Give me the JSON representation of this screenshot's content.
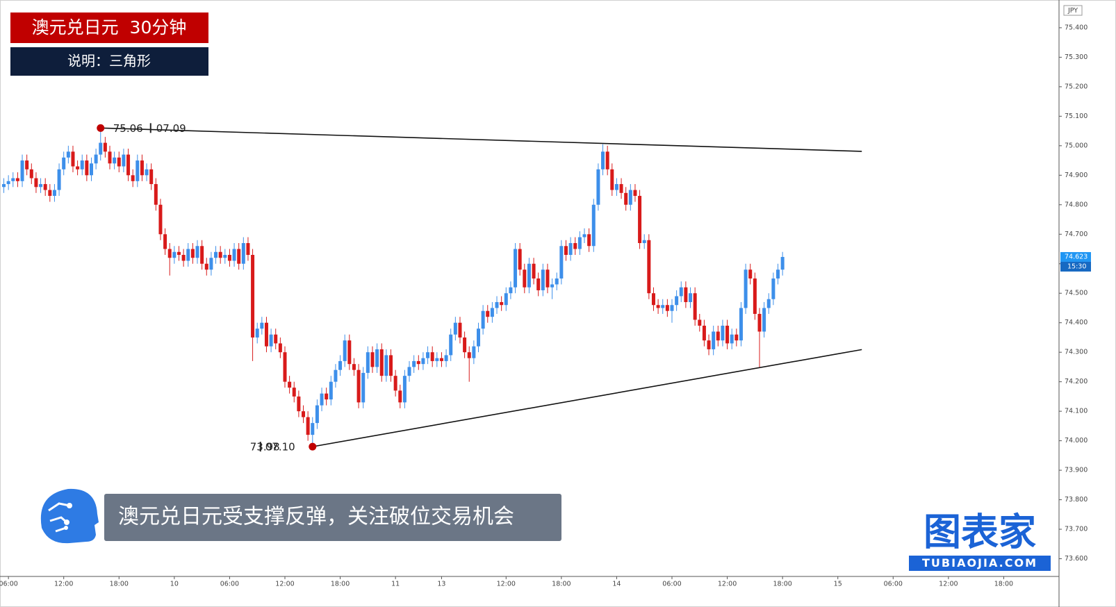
{
  "chart_data": {
    "type": "candlestick",
    "title": "澳元兑日元  30分钟",
    "subtitle": "说明：三角形",
    "caption": "澳元兑日元受支撑反弹，关注破位交易机会",
    "logo_text": "图表家",
    "logo_url": "TUBIAOJIA.COM",
    "currency": "JPY",
    "last_time": "15:30",
    "up_color": "#3d8fea",
    "down_color": "#d81a1a",
    "open": [
      74.86,
      74.87,
      74.88,
      74.89,
      74.88,
      74.95,
      74.92,
      74.89,
      74.86,
      74.87,
      74.85,
      74.83,
      74.85,
      74.92,
      74.96,
      74.98,
      74.93,
      74.92,
      74.95,
      74.9,
      74.94,
      74.97,
      75.01,
      74.98,
      74.94,
      74.96,
      74.93,
      74.97,
      74.9,
      74.88,
      74.95,
      74.9,
      74.92,
      74.87,
      74.8,
      74.7,
      74.65,
      74.62,
      74.64,
      74.63,
      74.61,
      74.65,
      74.62,
      74.66,
      74.6,
      74.58,
      74.62,
      74.64,
      74.62,
      74.63,
      74.61,
      74.65,
      74.6,
      74.67,
      74.63,
      74.35,
      74.38,
      74.4,
      74.32,
      74.36,
      74.33,
      74.3,
      74.2,
      74.18,
      74.15,
      74.1,
      74.08,
      74.02,
      74.06,
      74.12,
      74.16,
      74.14,
      74.2,
      74.24,
      74.27,
      74.34,
      74.26,
      74.24,
      74.13,
      74.23,
      74.3,
      74.25,
      74.31,
      74.22,
      74.29,
      74.22,
      74.17,
      74.13,
      74.22,
      74.25,
      74.27,
      74.26,
      74.28,
      74.3,
      74.27,
      74.28,
      74.27,
      74.29,
      74.36,
      74.4,
      74.35,
      74.3,
      74.28,
      74.32,
      74.38,
      74.44,
      74.42,
      74.45,
      74.47,
      74.46,
      74.5,
      74.52,
      74.65,
      74.58,
      74.52,
      74.6,
      74.55,
      74.51,
      74.58,
      74.52,
      74.53,
      74.55,
      74.66,
      74.63,
      74.67,
      74.65,
      74.69,
      74.7,
      74.66,
      74.8,
      74.92,
      74.98,
      74.92,
      74.85,
      74.87,
      74.84,
      74.8,
      74.85,
      74.83,
      74.67,
      74.68,
      74.5,
      74.46,
      74.45,
      74.46,
      74.44,
      74.46,
      74.49,
      74.52,
      74.47,
      74.5,
      74.41,
      74.39,
      74.34,
      74.31,
      74.37,
      74.34,
      74.39,
      74.33,
      74.36,
      74.34,
      74.45,
      74.58,
      74.55,
      74.43,
      74.37,
      74.45,
      74.48,
      74.55,
      74.58
    ],
    "high": [
      74.89,
      74.9,
      74.91,
      74.91,
      74.97,
      74.97,
      74.94,
      74.91,
      74.89,
      74.89,
      74.87,
      74.87,
      74.94,
      74.98,
      75.0,
      75.0,
      74.95,
      74.97,
      74.97,
      74.96,
      74.99,
      75.06,
      75.03,
      75.0,
      74.98,
      74.98,
      74.99,
      74.99,
      74.92,
      74.97,
      74.97,
      74.94,
      74.94,
      74.89,
      74.82,
      74.72,
      74.67,
      74.66,
      74.66,
      74.65,
      74.67,
      74.67,
      74.68,
      74.68,
      74.62,
      74.64,
      74.66,
      74.66,
      74.65,
      74.65,
      74.67,
      74.67,
      74.69,
      74.69,
      74.65,
      74.4,
      74.42,
      74.42,
      74.38,
      74.38,
      74.35,
      74.32,
      74.22,
      74.2,
      74.17,
      74.12,
      74.1,
      74.08,
      74.14,
      74.18,
      74.18,
      74.22,
      74.26,
      74.29,
      74.36,
      74.36,
      74.28,
      74.26,
      74.25,
      74.32,
      74.32,
      74.33,
      74.33,
      74.31,
      74.31,
      74.24,
      74.19,
      74.24,
      74.27,
      74.29,
      74.29,
      74.3,
      74.32,
      74.32,
      74.3,
      74.3,
      74.31,
      74.38,
      74.42,
      74.42,
      74.37,
      74.32,
      74.34,
      74.4,
      74.46,
      74.46,
      74.47,
      74.49,
      74.49,
      74.52,
      74.54,
      74.67,
      74.67,
      74.6,
      74.62,
      74.62,
      74.57,
      74.6,
      74.6,
      74.55,
      74.57,
      74.68,
      74.68,
      74.69,
      74.69,
      74.71,
      74.72,
      74.72,
      74.82,
      74.94,
      75.005,
      75.0,
      74.94,
      74.89,
      74.89,
      74.86,
      74.87,
      74.87,
      74.85,
      74.7,
      74.7,
      74.52,
      74.48,
      74.48,
      74.48,
      74.48,
      74.51,
      74.54,
      74.54,
      74.52,
      74.52,
      74.43,
      74.41,
      74.36,
      74.39,
      74.39,
      74.41,
      74.41,
      74.38,
      74.38,
      74.47,
      74.6,
      74.6,
      74.57,
      74.45,
      74.47,
      74.5,
      74.57,
      74.6,
      74.64
    ],
    "low": [
      74.84,
      74.85,
      74.86,
      74.86,
      74.86,
      74.9,
      74.87,
      74.84,
      74.84,
      74.83,
      74.81,
      74.81,
      74.83,
      74.9,
      74.94,
      74.91,
      74.9,
      74.9,
      74.88,
      74.88,
      74.92,
      74.95,
      74.96,
      74.92,
      74.92,
      74.91,
      74.91,
      74.88,
      74.86,
      74.86,
      74.88,
      74.88,
      74.85,
      74.78,
      74.68,
      74.63,
      74.56,
      74.6,
      74.61,
      74.59,
      74.59,
      74.6,
      74.6,
      74.58,
      74.56,
      74.56,
      74.6,
      74.6,
      74.6,
      74.59,
      74.59,
      74.58,
      74.58,
      74.61,
      74.27,
      74.33,
      74.36,
      74.3,
      74.3,
      74.31,
      74.28,
      74.18,
      74.16,
      74.13,
      74.08,
      74.06,
      74.0,
      73.98,
      74.04,
      74.1,
      74.12,
      74.12,
      74.18,
      74.22,
      74.25,
      74.24,
      74.22,
      74.11,
      74.11,
      74.21,
      74.23,
      74.23,
      74.2,
      74.2,
      74.2,
      74.15,
      74.11,
      74.11,
      74.2,
      74.23,
      74.24,
      74.24,
      74.26,
      74.25,
      74.25,
      74.25,
      74.25,
      74.27,
      74.34,
      74.33,
      74.28,
      74.2,
      74.26,
      74.3,
      74.36,
      74.4,
      74.4,
      74.43,
      74.44,
      74.44,
      74.48,
      74.5,
      74.56,
      74.5,
      74.5,
      74.53,
      74.49,
      74.49,
      74.5,
      74.48,
      74.51,
      74.53,
      74.61,
      74.61,
      74.63,
      74.63,
      74.67,
      74.64,
      74.64,
      74.78,
      74.9,
      74.9,
      74.83,
      74.83,
      74.82,
      74.78,
      74.78,
      74.81,
      74.65,
      74.65,
      74.48,
      74.44,
      74.43,
      74.43,
      74.42,
      74.4,
      74.44,
      74.47,
      74.45,
      74.45,
      74.39,
      74.37,
      74.32,
      74.29,
      74.29,
      74.32,
      74.32,
      74.31,
      74.31,
      74.32,
      74.32,
      74.43,
      74.53,
      74.41,
      74.25,
      74.35,
      74.43,
      74.46,
      74.53,
      74.56
    ],
    "close": [
      74.87,
      74.88,
      74.89,
      74.88,
      74.95,
      74.92,
      74.89,
      74.86,
      74.87,
      74.85,
      74.83,
      74.85,
      74.92,
      74.96,
      74.98,
      74.93,
      74.92,
      74.95,
      74.9,
      74.94,
      74.97,
      75.01,
      74.98,
      74.94,
      74.96,
      74.93,
      74.97,
      74.9,
      74.88,
      74.95,
      74.9,
      74.92,
      74.87,
      74.8,
      74.7,
      74.65,
      74.62,
      74.64,
      74.63,
      74.61,
      74.65,
      74.62,
      74.66,
      74.6,
      74.58,
      74.62,
      74.64,
      74.62,
      74.63,
      74.61,
      74.65,
      74.6,
      74.67,
      74.63,
      74.35,
      74.38,
      74.4,
      74.32,
      74.36,
      74.33,
      74.3,
      74.2,
      74.18,
      74.15,
      74.1,
      74.08,
      74.02,
      74.06,
      74.12,
      74.16,
      74.14,
      74.2,
      74.24,
      74.27,
      74.34,
      74.26,
      74.24,
      74.13,
      74.23,
      74.3,
      74.25,
      74.31,
      74.22,
      74.29,
      74.22,
      74.17,
      74.13,
      74.22,
      74.25,
      74.27,
      74.26,
      74.28,
      74.3,
      74.27,
      74.28,
      74.27,
      74.29,
      74.36,
      74.4,
      74.35,
      74.3,
      74.28,
      74.32,
      74.38,
      74.44,
      74.42,
      74.45,
      74.47,
      74.46,
      74.5,
      74.52,
      74.65,
      74.58,
      74.52,
      74.6,
      74.55,
      74.51,
      74.58,
      74.52,
      74.53,
      74.55,
      74.66,
      74.63,
      74.67,
      74.65,
      74.69,
      74.7,
      74.66,
      74.8,
      74.92,
      74.98,
      74.92,
      74.85,
      74.87,
      74.84,
      74.8,
      74.85,
      74.83,
      74.67,
      74.68,
      74.5,
      74.46,
      74.45,
      74.46,
      74.44,
      74.46,
      74.49,
      74.52,
      74.47,
      74.5,
      74.41,
      74.39,
      74.34,
      74.31,
      74.37,
      74.34,
      74.39,
      74.33,
      74.36,
      74.34,
      74.45,
      74.58,
      74.55,
      74.43,
      74.37,
      74.45,
      74.48,
      74.55,
      74.58,
      74.623
    ],
    "xlim": [
      -0.83,
      229
    ],
    "xticks": [
      {
        "value": 1,
        "label": "06:00"
      },
      {
        "value": 13,
        "label": "12:00"
      },
      {
        "value": 25,
        "label": "18:00"
      },
      {
        "value": 37,
        "label": "10"
      },
      {
        "value": 49,
        "label": "06:00"
      },
      {
        "value": 61,
        "label": "12:00"
      },
      {
        "value": 73,
        "label": "18:00"
      },
      {
        "value": 85,
        "label": "11"
      },
      {
        "value": 95,
        "label": "13"
      },
      {
        "value": 109,
        "label": "12:00"
      },
      {
        "value": 121,
        "label": "18:00"
      },
      {
        "value": 133,
        "label": "14"
      },
      {
        "value": 145,
        "label": "06:00"
      },
      {
        "value": 157,
        "label": "12:00"
      },
      {
        "value": 169,
        "label": "18:00"
      },
      {
        "value": 181,
        "label": "15"
      },
      {
        "value": 193,
        "label": "06:00"
      },
      {
        "value": 205,
        "label": "12:00"
      },
      {
        "value": 217,
        "label": "18:00"
      }
    ],
    "ylim": [
      73.54,
      75.494
    ],
    "yticks": [
      {
        "value": 73.6,
        "label": "73.600"
      },
      {
        "value": 73.7,
        "label": "73.700"
      },
      {
        "value": 73.8,
        "label": "73.800"
      },
      {
        "value": 73.9,
        "label": "73.900"
      },
      {
        "value": 74.0,
        "label": "74.000"
      },
      {
        "value": 74.1,
        "label": "74.100"
      },
      {
        "value": 74.2,
        "label": "74.200"
      },
      {
        "value": 74.3,
        "label": "74.300"
      },
      {
        "value": 74.4,
        "label": "74.400"
      },
      {
        "value": 74.5,
        "label": "74.500"
      },
      {
        "value": 74.6,
        "label": "74.600"
      },
      {
        "value": 74.7,
        "label": "74.700"
      },
      {
        "value": 74.8,
        "label": "74.800"
      },
      {
        "value": 74.9,
        "label": "74.900"
      },
      {
        "value": 75.0,
        "label": "75.000"
      },
      {
        "value": 75.1,
        "label": "75.100"
      },
      {
        "value": 75.2,
        "label": "75.200"
      },
      {
        "value": 75.3,
        "label": "75.300"
      },
      {
        "value": 75.4,
        "label": "75.400"
      }
    ],
    "trendlines": [
      {
        "x": [
          21,
          186.2
        ],
        "y": [
          75.06,
          74.981
        ]
      },
      {
        "x": [
          67,
          186.2
        ],
        "y": [
          73.98,
          74.309
        ]
      }
    ],
    "annotations": [
      {
        "price": 75.06,
        "date": "07.09"
      },
      {
        "price": 73.98,
        "date": "07.10"
      }
    ]
  }
}
